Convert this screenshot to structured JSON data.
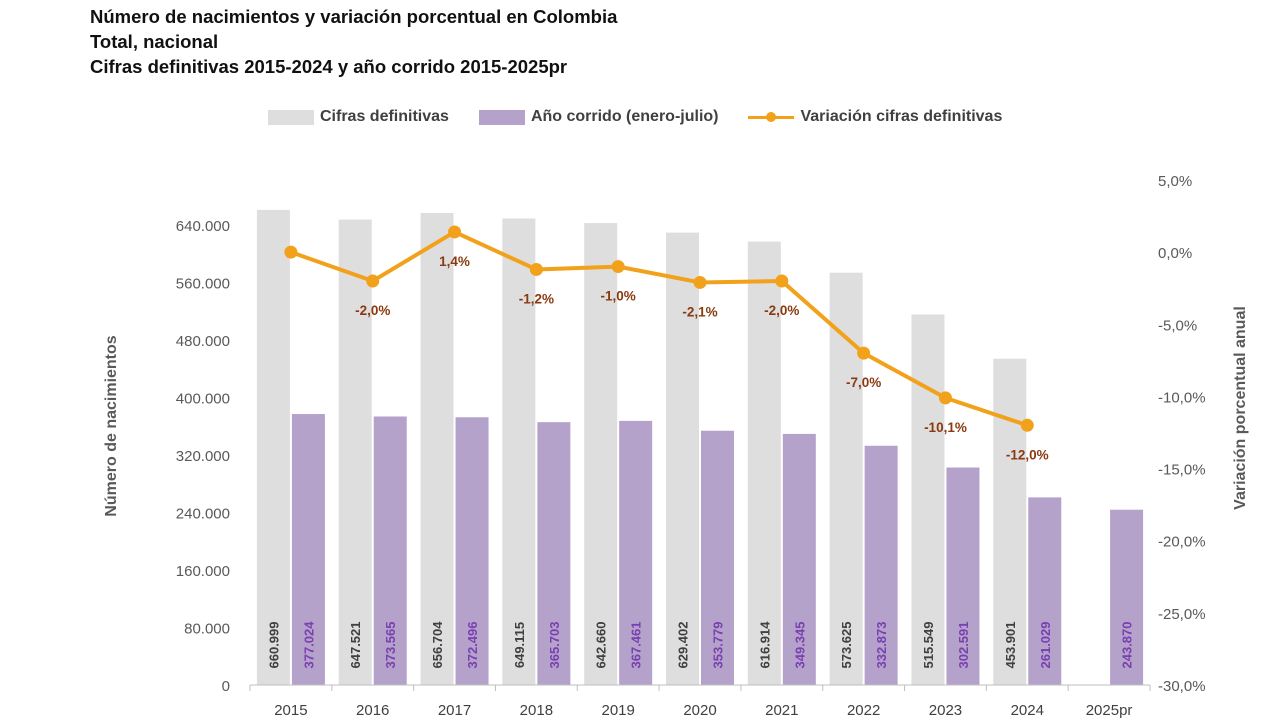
{
  "titles": {
    "line1": "Número de nacimientos y variación porcentual en Colombia",
    "line2": "Total, nacional",
    "line3": "Cifras definitivas 2015-2024 y año corrido 2015-2025pr"
  },
  "legend": {
    "definitivas": "Cifras definitivas",
    "corrido": "Año corrido (enero-julio)",
    "variacion": "Variación cifras definitivas"
  },
  "colors": {
    "definitivas": "#dedede",
    "corrido": "#b4a2cb",
    "variacion": "#f2a11a",
    "var_label": "#8a3a10",
    "corrido_label": "#7a3fb0"
  },
  "chart_data": {
    "type": "bar",
    "title": "Número de nacimientos y variación porcentual en Colombia",
    "categories": [
      "2015",
      "2016",
      "2017",
      "2018",
      "2019",
      "2020",
      "2021",
      "2022",
      "2023",
      "2024",
      "2025pr"
    ],
    "ylabel": "Número de nacimientos",
    "y2label": "Variación porcentual anual",
    "ylim": [
      0,
      720000
    ],
    "y2lim": [
      -30,
      5
    ],
    "yticks": [
      "0",
      "80.000",
      "160.000",
      "240.000",
      "320.000",
      "400.000",
      "480.000",
      "560.000",
      "640.000"
    ],
    "y2ticks": [
      "-30,0%",
      "-25,0%",
      "-20,0%",
      "-15,0%",
      "-10,0%",
      "-5,0%",
      "0,0%",
      "5,0%"
    ],
    "series": [
      {
        "name": "Cifras definitivas",
        "type": "bar",
        "values": [
          660999,
          647521,
          656704,
          649115,
          642660,
          629402,
          616914,
          573625,
          515549,
          453901,
          null
        ],
        "labels": [
          "660.999",
          "647.521",
          "656.704",
          "649.115",
          "642.660",
          "629.402",
          "616.914",
          "573.625",
          "515.549",
          "453.901",
          ""
        ]
      },
      {
        "name": "Año corrido (enero-julio)",
        "type": "bar",
        "values": [
          377024,
          373565,
          372496,
          365703,
          367461,
          353779,
          349345,
          332873,
          302591,
          261029,
          243870
        ],
        "labels": [
          "377.024",
          "373.565",
          "372.496",
          "365.703",
          "367.461",
          "353.779",
          "349.345",
          "332.873",
          "302.591",
          "261.029",
          "243.870"
        ]
      },
      {
        "name": "Variación cifras definitivas",
        "type": "line",
        "axis": "y2",
        "values": [
          0.0,
          -2.0,
          1.4,
          -1.2,
          -1.0,
          -2.1,
          -2.0,
          -7.0,
          -10.1,
          -12.0,
          null
        ],
        "labels": [
          "",
          "-2,0%",
          "1,4%",
          "-1,2%",
          "-1,0%",
          "-2,1%",
          "-2,0%",
          "-7,0%",
          "-10,1%",
          "-12,0%",
          ""
        ]
      }
    ],
    "legend_position": "top"
  }
}
